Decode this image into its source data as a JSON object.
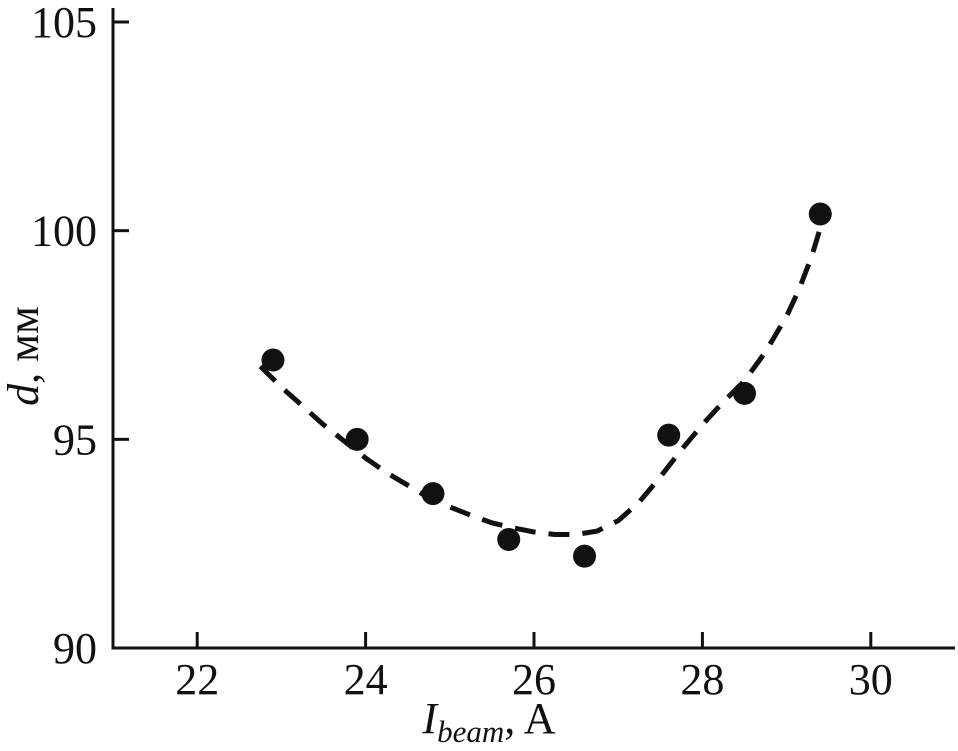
{
  "figure": {
    "background": "#ffffff",
    "ink_color": "#111111"
  },
  "chart_data": {
    "type": "scatter",
    "title": "",
    "xlabel": {
      "variable": "I",
      "subscript": "beam",
      "suffix": ", A"
    },
    "ylabel": {
      "variable": "d",
      "suffix": ", мм"
    },
    "xlim": [
      21,
      31
    ],
    "ylim": [
      90,
      105
    ],
    "xticks": [
      22,
      24,
      26,
      28,
      30
    ],
    "yticks": [
      90,
      95,
      100,
      105
    ],
    "grid": false,
    "legend": "none",
    "axes_style": "L-shaped, inward ticks, serif labels",
    "series": [
      {
        "name": "measured-diameter-points",
        "type": "scatter",
        "marker": "filled-circle",
        "marker_radius_px": 11.5,
        "color": "#111111",
        "points": [
          [
            22.9,
            96.9
          ],
          [
            23.9,
            95.0
          ],
          [
            24.8,
            93.7
          ],
          [
            25.7,
            92.6
          ],
          [
            26.6,
            92.2
          ],
          [
            27.6,
            95.1
          ],
          [
            28.5,
            96.1
          ],
          [
            29.4,
            100.4
          ]
        ]
      },
      {
        "name": "fit-curve-dashed",
        "type": "line",
        "style": "dashed",
        "color": "#111111",
        "stroke_width_px": 5,
        "dash_pattern": [
          21,
          13
        ],
        "points": [
          [
            22.75,
            96.75
          ],
          [
            23.0,
            96.25
          ],
          [
            23.25,
            95.8
          ],
          [
            23.5,
            95.35
          ],
          [
            23.75,
            94.95
          ],
          [
            24.0,
            94.55
          ],
          [
            24.25,
            94.2
          ],
          [
            24.5,
            93.9
          ],
          [
            24.75,
            93.6
          ],
          [
            25.0,
            93.38
          ],
          [
            25.25,
            93.18
          ],
          [
            25.5,
            93.0
          ],
          [
            25.75,
            92.88
          ],
          [
            26.0,
            92.78
          ],
          [
            26.25,
            92.72
          ],
          [
            26.5,
            92.72
          ],
          [
            26.75,
            92.8
          ],
          [
            27.0,
            93.05
          ],
          [
            27.25,
            93.5
          ],
          [
            27.5,
            94.1
          ],
          [
            27.75,
            94.75
          ],
          [
            28.0,
            95.35
          ],
          [
            28.25,
            95.9
          ],
          [
            28.5,
            96.4
          ],
          [
            28.75,
            97.1
          ],
          [
            29.0,
            97.95
          ],
          [
            29.15,
            98.6
          ],
          [
            29.3,
            99.4
          ],
          [
            29.42,
            100.2
          ]
        ]
      }
    ]
  }
}
